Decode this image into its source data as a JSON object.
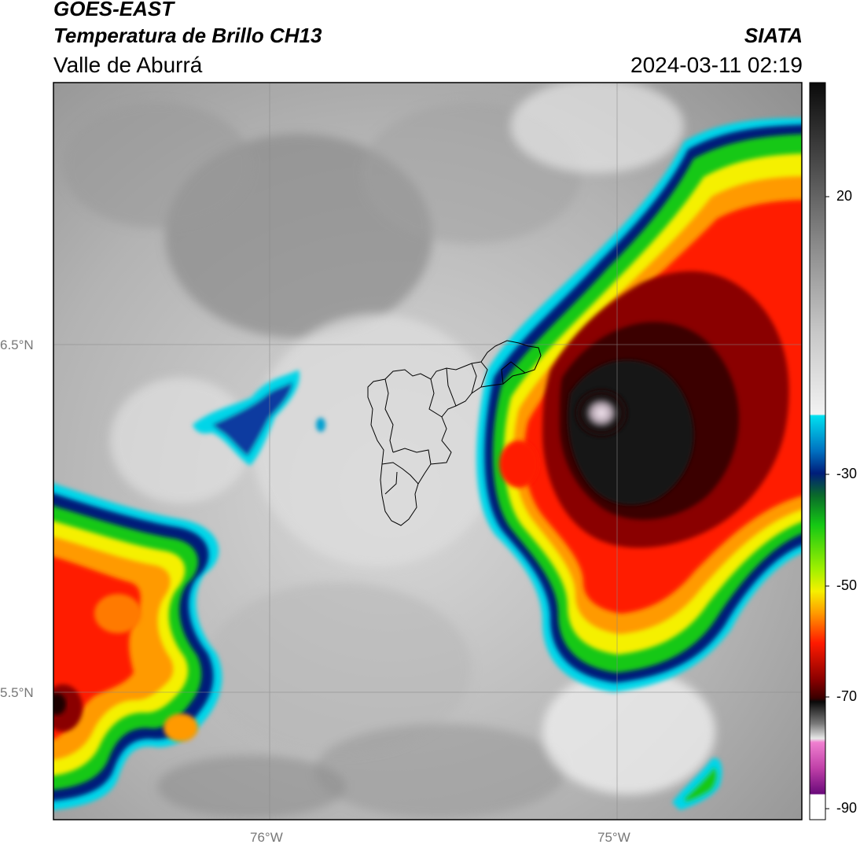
{
  "header": {
    "satellite": "GOES-EAST",
    "product": "Temperatura de Brillo CH13",
    "region": "Valle de Aburrá",
    "organization": "SIATA",
    "timestamp": "2024-03-11 02:19"
  },
  "map": {
    "lat_ticks": [
      "6.5°N",
      "5.5°N"
    ],
    "lon_ticks": [
      "76°W",
      "75°W"
    ]
  },
  "colorbar": {
    "ticks": [
      "20",
      "-30",
      "-50",
      "-70",
      "-90"
    ],
    "colors": {
      "warm_gray_top": "#111111",
      "gray_mid": "#8a8a8a",
      "white": "#f2f2f2",
      "cyan": "#00d5e8",
      "dark_blue": "#001d7a",
      "green": "#14c814",
      "yellow": "#f5f000",
      "orange": "#ff9a00",
      "red": "#ff1a00",
      "dark_red": "#5a0000",
      "black": "#0a0a0a",
      "pink": "#e66ac8",
      "purple": "#6a0a7a"
    }
  }
}
